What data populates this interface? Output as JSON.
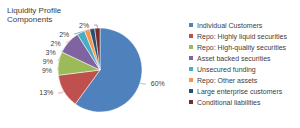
{
  "chart_data": {
    "type": "pie",
    "title": "Liquidity Profile Components",
    "categories": [
      "Individual Customers",
      "Repo: Highly liquid securities",
      "Repo: High-quality securities",
      "Asset backed securities",
      "Unsecured funding",
      "Repo: Other assets",
      "Large enterprise customers",
      "Conditional liabilities"
    ],
    "values": [
      60,
      13,
      9,
      9,
      3,
      2,
      2,
      2
    ],
    "value_labels": [
      "60%",
      "13%",
      "9%",
      "9%",
      "3%",
      "2%",
      "2%",
      "2%"
    ],
    "colors": [
      "#4f81bd",
      "#c0504d",
      "#9bbb59",
      "#8064a2",
      "#4bacc6",
      "#f79646",
      "#2c4d75",
      "#772c2a"
    ],
    "legend": "right",
    "data_labels": true
  }
}
